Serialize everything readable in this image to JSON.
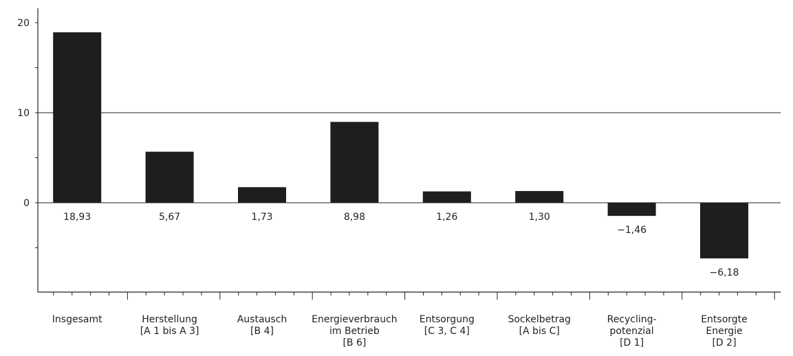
{
  "chart_data": {
    "type": "bar",
    "categories": [
      [
        "Insgesamt"
      ],
      [
        "Herstellung",
        "[A 1 bis A 3]"
      ],
      [
        "Austausch",
        "[B 4]"
      ],
      [
        "Energieverbrauch",
        "im Betrieb",
        "[B 6]"
      ],
      [
        "Entsorgung",
        "[C 3, C 4]"
      ],
      [
        "Sockelbetrag",
        "[A bis C]"
      ],
      [
        "Recycling-",
        "potenzial",
        "[D 1]"
      ],
      [
        "Entsorgte",
        "Energie",
        "[D 2]"
      ]
    ],
    "values": [
      18.93,
      5.67,
      1.73,
      8.98,
      1.26,
      1.3,
      -1.46,
      -6.18
    ],
    "value_labels": [
      "18,93",
      "5,67",
      "1,73",
      "8,98",
      "1,26",
      "1,30",
      "−1,46",
      "−6,18"
    ],
    "y_ticks": [
      0,
      10,
      20
    ],
    "ylim": [
      -10,
      21.5
    ],
    "gridlines": [
      0,
      10
    ],
    "bar_color": "#1e1e1e",
    "axis_color": "#222222",
    "title": "",
    "xlabel": "",
    "ylabel": ""
  }
}
